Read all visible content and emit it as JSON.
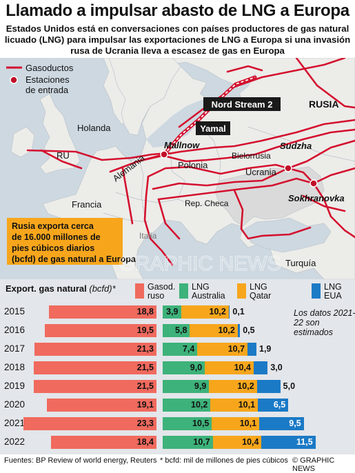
{
  "title": "Llamado a impulsar abasto de LNG a Europa",
  "subtitle": "Estados Unidos está en conversaciones con países productores de gas natural licuado (LNG) para impulsar las exportaciones de LNG a Europa si una invasión rusa de Ucrania lleva a escasez de gas en Europa",
  "map": {
    "legend_pipelines": "Gasoductos",
    "legend_stations": "Estaciones de entrada",
    "colors": {
      "pipeline": "#d4102e",
      "sea": "#cdd8e1",
      "land": "#ecece9",
      "ukraine": "#dadada",
      "callout": "#f7a61c"
    },
    "labels": {
      "russia": "RUSIA",
      "holland": "Holanda",
      "uk": "RU",
      "germany": "Alemania",
      "poland": "Polonia",
      "belarus": "Bielorrusia",
      "ukraine": "Ucrania",
      "france": "Francia",
      "czech": "Rep. Checa",
      "italy": "Italia",
      "turkey": "Turquía",
      "mallnow": "Mallnow",
      "sudzha": "Sudzha",
      "sokhranovka": "Sokhranovka",
      "nord_stream": "Nord Stream 2",
      "yamal": "Yamal"
    },
    "callout": "Rusia exporta cerca de 16.000 millones de pies cúbicos diarios (bcfd) de gas natural a Europa",
    "watermark": "GRAPHIC NEWS"
  },
  "chart_data": {
    "type": "bar",
    "title": "Export. gas natural",
    "unit": "(bcfd)*",
    "categories": [
      "2015",
      "2016",
      "2017",
      "2018",
      "2019",
      "2020",
      "2021",
      "2022"
    ],
    "series": [
      {
        "name": "Gasod. ruso",
        "color": "#f06a5e",
        "values": [
          18.8,
          19.5,
          21.3,
          21.5,
          21.5,
          19.1,
          23.3,
          18.4
        ]
      },
      {
        "name": "LNG Australia",
        "color": "#3db27a",
        "values": [
          3.9,
          5.8,
          7.4,
          9.0,
          9.9,
          10.2,
          10.5,
          10.7
        ]
      },
      {
        "name": "LNG Qatar",
        "color": "#f7a61c",
        "values": [
          10.2,
          10.2,
          10.7,
          10.4,
          10.2,
          10.1,
          10.1,
          10.4
        ]
      },
      {
        "name": "LNG EUA",
        "color": "#1b7ac6",
        "values": [
          0.1,
          0.5,
          1.9,
          3.0,
          5.0,
          6.5,
          9.5,
          11.5
        ]
      }
    ],
    "legend": [
      {
        "line1": "Gasod.",
        "line2": "ruso"
      },
      {
        "line1": "LNG",
        "line2": "Australia"
      },
      {
        "line1": "LNG",
        "line2": "Qatar"
      },
      {
        "line1": "LNG",
        "line2": "EUA"
      }
    ],
    "value_labels": {
      "ru": [
        "18,8",
        "19,5",
        "21,3",
        "21,5",
        "21,5",
        "19,1",
        "23,3",
        "18,4"
      ],
      "au": [
        "3,9",
        "5,8",
        "7,4",
        "9,0",
        "9,9",
        "10,2",
        "10,5",
        "10,7"
      ],
      "qa": [
        "10,2",
        "10,2",
        "10,7",
        "10,4",
        "10,2",
        "10,1",
        "10,1",
        "10,4"
      ],
      "us": [
        "0,1",
        "0,5",
        "1,9",
        "3,0",
        "5,0",
        "6,5",
        "9,5",
        "11,5"
      ]
    },
    "note": "Los datos 2021-22 son estimados"
  },
  "footer": {
    "sources": "Fuentes: BP Review of world energy, Reuters",
    "footnote": "* bcfd: mil de millones de pies cúbicos",
    "credit": "© GRAPHIC NEWS"
  }
}
